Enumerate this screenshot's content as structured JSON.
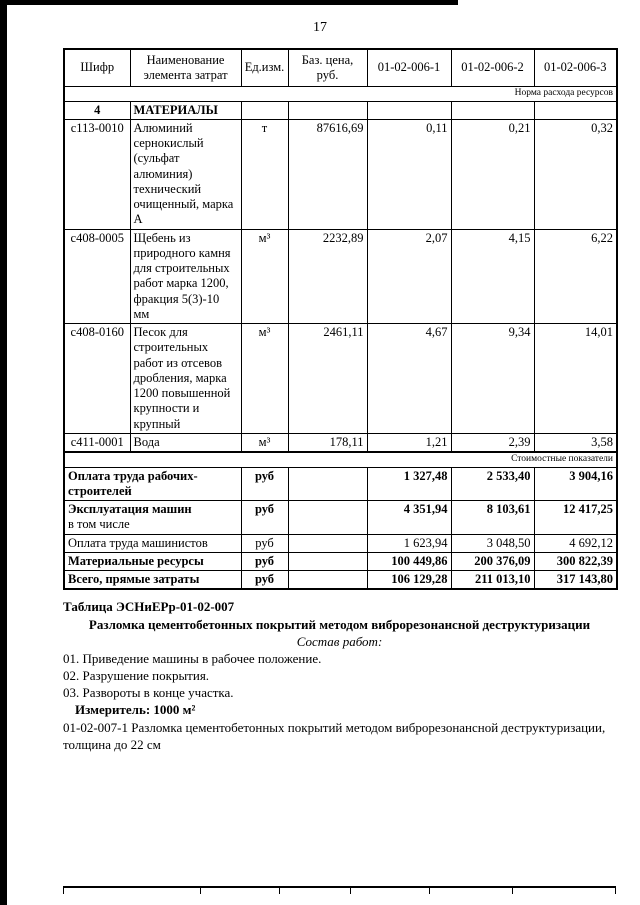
{
  "page": {
    "number": "17"
  },
  "table": {
    "headers": [
      "Шифр",
      "Наименование элемента затрат",
      "Ед.изм.",
      "Баз. цена, руб.",
      "01-02-006-1",
      "01-02-006-2",
      "01-02-006-3"
    ],
    "norm_band": "Норма расхода ресурсов",
    "cost_band": "Стоимостные показатели",
    "resource_rows": [
      {
        "code": "4",
        "name": "МАТЕРИАЛЫ",
        "unit": "",
        "price": "",
        "v1": "",
        "v2": "",
        "v3": "",
        "bold": true
      },
      {
        "code": "с113-0010",
        "name": "Алюминий сернокислый (сульфат алюминия) технический очищенный, марка А",
        "unit": "т",
        "price": "87616,69",
        "v1": "0,11",
        "v2": "0,21",
        "v3": "0,32",
        "bold": false
      },
      {
        "code": "с408-0005",
        "name": "Щебень из природного камня для строительных работ марка 1200, фракция 5(3)-10 мм",
        "unit": "м³",
        "price": "2232,89",
        "v1": "2,07",
        "v2": "4,15",
        "v3": "6,22",
        "bold": false
      },
      {
        "code": "с408-0160",
        "name": "Песок для строительных работ из отсевов дробления, марка 1200 повышенной крупности и крупный",
        "unit": "м³",
        "price": "2461,11",
        "v1": "4,67",
        "v2": "9,34",
        "v3": "14,01",
        "bold": false
      },
      {
        "code": "с411-0001",
        "name": "Вода",
        "unit": "м³",
        "price": "178,11",
        "v1": "1,21",
        "v2": "2,39",
        "v3": "3,58",
        "bold": false
      }
    ],
    "cost_rows": [
      {
        "label": "Оплата труда рабочих-строителей",
        "sub": "",
        "unit": "руб",
        "price": "",
        "v1": "1 327,48",
        "v2": "2 533,40",
        "v3": "3 904,16",
        "bold": true
      },
      {
        "label": "Эксплуатация машин",
        "sub": "в том числе",
        "unit": "руб",
        "price": "",
        "v1": "4 351,94",
        "v2": "8 103,61",
        "v3": "12 417,25",
        "bold": true
      },
      {
        "label": "Оплата труда машинистов",
        "sub": "",
        "unit": "руб",
        "price": "",
        "v1": "1 623,94",
        "v2": "3 048,50",
        "v3": "4 692,12",
        "bold": false
      },
      {
        "label": "Материальные ресурсы",
        "sub": "",
        "unit": "руб",
        "price": "",
        "v1": "100 449,86",
        "v2": "200 376,09",
        "v3": "300 822,39",
        "bold": true
      },
      {
        "label": "Всего, прямые затраты",
        "sub": "",
        "unit": "руб",
        "price": "",
        "v1": "106 129,28",
        "v2": "211 013,10",
        "v3": "317 143,80",
        "bold": true
      }
    ]
  },
  "footer": {
    "table_label": "Таблица ЭСНиЕРр-01-02-007",
    "table_title": "Разломка цементобетонных покрытий методом виброрезонансной деструктуризации",
    "works_label": "Состав работ:",
    "works": [
      "01. Приведение машины в рабочее положение.",
      "02. Разрушение покрытия.",
      "03. Развороты в конце участка."
    ],
    "measure_label": "Измеритель:",
    "measure_value": "1000 м²",
    "item_text": "01-02-007-1 Разломка цементобетонных покрытий методом виброрезонансной деструктуризации, толщина до 22 см"
  }
}
